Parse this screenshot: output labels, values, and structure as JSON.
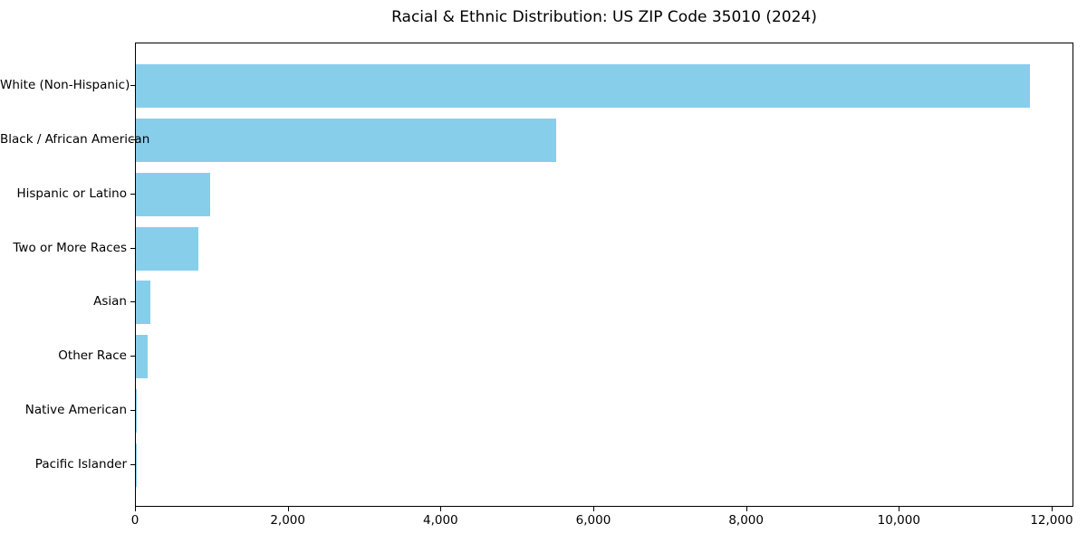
{
  "title": "Racial & Ethnic Distribution: US ZIP Code 35010 (2024)",
  "colors": {
    "bar": "#87CEEB",
    "axis": "#000000",
    "text": "#000000",
    "background": "#FFFFFF"
  },
  "chart_data": {
    "type": "bar",
    "orientation": "horizontal",
    "title": "Racial & Ethnic Distribution: US ZIP Code 35010 (2024)",
    "categories": [
      "White (Non-Hispanic)",
      "Black / African American",
      "Hispanic or Latino",
      "Two or More Races",
      "Asian",
      "Other Race",
      "Native American",
      "Pacific Islander"
    ],
    "values": [
      11700,
      5500,
      970,
      820,
      190,
      150,
      10,
      5
    ],
    "xlabel": "",
    "ylabel": "",
    "xlim": [
      0,
      12285
    ],
    "x_ticks": [
      0,
      2000,
      4000,
      6000,
      8000,
      10000,
      12000
    ],
    "x_tick_labels": [
      "0",
      "2,000",
      "4,000",
      "6,000",
      "8,000",
      "10,000",
      "12,000"
    ],
    "bar_color": "#87CEEB",
    "grid": false,
    "legend": "none"
  }
}
